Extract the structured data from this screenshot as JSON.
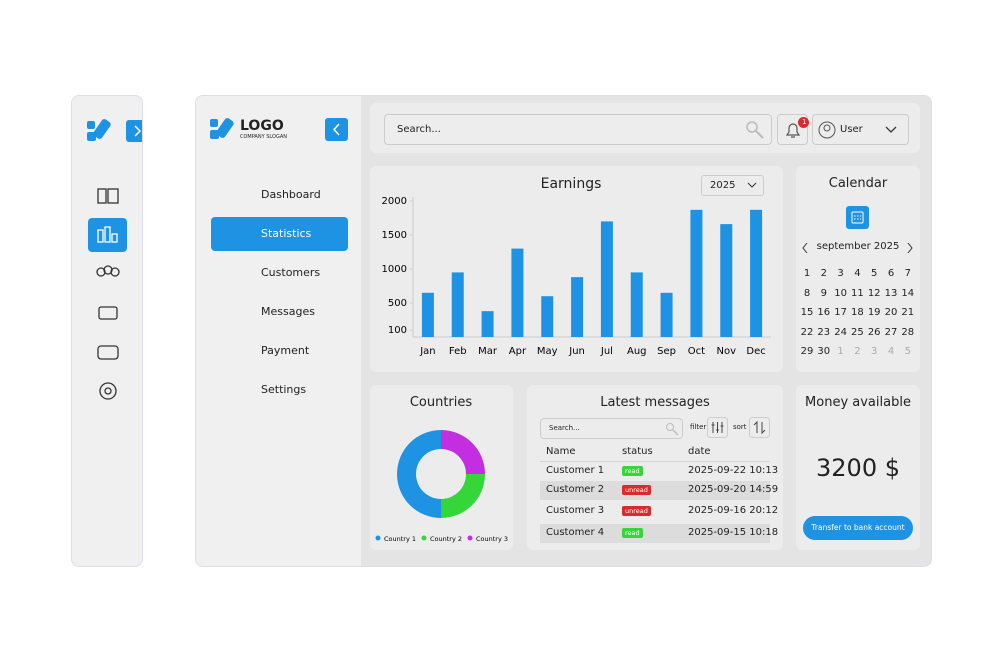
{
  "sidebar": {
    "logo": "LOGO",
    "slogan": "COMPANY SLOGAN",
    "menu": [
      "Dashboard",
      "Statistics",
      "Customers",
      "Messages",
      "Payment",
      "Settings"
    ],
    "active": 1
  },
  "topbar": {
    "search_placeholder": "Search...",
    "notifications": "1",
    "user": "User"
  },
  "earnings": {
    "type": "bar",
    "title": "Earnings",
    "year": "2025",
    "categories": [
      "Jan",
      "Feb",
      "Mar",
      "Apr",
      "May",
      "Jun",
      "Jul",
      "Aug",
      "Sep",
      "Oct",
      "Nov",
      "Dec"
    ],
    "values": [
      650,
      950,
      380,
      1300,
      600,
      880,
      1700,
      950,
      650,
      1870,
      1660,
      1870
    ],
    "color": "#1e93e3",
    "ylim": [
      0,
      2000
    ],
    "yticks": [
      100,
      500,
      1000,
      1500,
      2000
    ]
  },
  "calendar": {
    "title": "Calendar",
    "month": "september 2025",
    "days": [
      1,
      2,
      3,
      4,
      5,
      6,
      7,
      8,
      9,
      10,
      11,
      12,
      13,
      14,
      15,
      16,
      17,
      18,
      19,
      20,
      21,
      22,
      23,
      24,
      25,
      26,
      27,
      28,
      29,
      30
    ],
    "next_days": [
      1,
      2,
      3,
      4,
      5
    ]
  },
  "countries": {
    "type": "pie",
    "title": "Countries",
    "categories": [
      "Country 1",
      "Country 2",
      "Country 3"
    ],
    "values": [
      50,
      25,
      25
    ],
    "colors": [
      "#1e93e3",
      "#35d63a",
      "#c22ee0"
    ]
  },
  "messages": {
    "title": "Latest messages",
    "search_placeholder": "Search...",
    "filter": "filter",
    "sort": "sort",
    "columns": [
      "Name",
      "status",
      "date"
    ],
    "rows": [
      [
        "Customer 1",
        "read",
        "2025-09-22 10:13"
      ],
      [
        "Customer 2",
        "unread",
        "2025-09-20 14:59"
      ],
      [
        "Customer 3",
        "unread",
        "2025-09-16 20:12"
      ],
      [
        "Customer 4",
        "read",
        "2025-09-15 10:18"
      ]
    ],
    "status_colors": {
      "read": "#35d63a",
      "unread": "#d92b2b"
    }
  },
  "money": {
    "title": "Money available",
    "amount": "3200 $",
    "button": "Transfer to bank account"
  }
}
